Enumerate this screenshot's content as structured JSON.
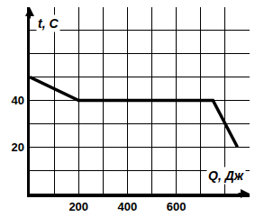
{
  "chart_data": {
    "type": "line",
    "x_label": "Q, Дж",
    "y_label": "t, C",
    "x": [
      0,
      200,
      750,
      850
    ],
    "values": [
      50,
      40,
      40,
      20
    ],
    "color": "#000000",
    "xlim": [
      0,
      900
    ],
    "ylim": [
      0,
      80
    ],
    "xticks": [
      200,
      400,
      600
    ],
    "yticks": [
      20,
      40
    ],
    "grid": true
  }
}
